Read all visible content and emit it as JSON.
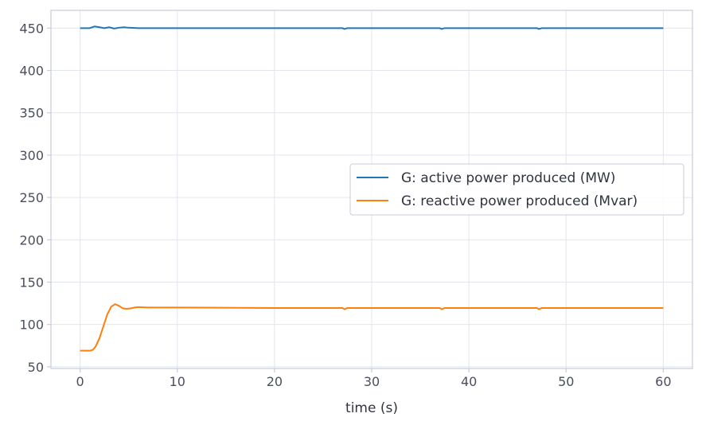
{
  "chart_data": {
    "type": "line",
    "title": "",
    "xlabel": "time (s)",
    "ylabel": "",
    "xlim": [
      -3,
      63
    ],
    "ylim": [
      48,
      471
    ],
    "xticks": [
      0,
      10,
      20,
      30,
      40,
      50,
      60
    ],
    "yticks": [
      50,
      100,
      150,
      200,
      250,
      300,
      350,
      400,
      450
    ],
    "grid": true,
    "legend_position": "center-right",
    "series": [
      {
        "name": "G: active power produced (MW)",
        "color": "#1f77b4",
        "x": [
          0,
          1.0,
          1.5,
          2.0,
          2.5,
          3.0,
          3.5,
          4.0,
          4.5,
          5.0,
          6.0,
          8.0,
          10,
          20,
          27.0,
          27.2,
          27.5,
          30,
          37.0,
          37.2,
          37.5,
          40,
          47.0,
          47.2,
          47.5,
          50,
          60
        ],
        "y": [
          450,
          450,
          452,
          451,
          450,
          451,
          449.5,
          450.5,
          451,
          450.5,
          450,
          450,
          450,
          450,
          450,
          449,
          450,
          450,
          450,
          449,
          450,
          450,
          450,
          449,
          450,
          450,
          450
        ]
      },
      {
        "name": "G: reactive power produced (Mvar)",
        "color": "#ff7f0e",
        "x": [
          0,
          0.5,
          1.0,
          1.3,
          1.6,
          2.0,
          2.4,
          2.8,
          3.2,
          3.6,
          4.0,
          4.4,
          4.8,
          5.2,
          5.6,
          6.0,
          7.0,
          8.0,
          10,
          20,
          27.0,
          27.2,
          27.5,
          30,
          37.0,
          37.2,
          37.5,
          40,
          47.0,
          47.2,
          47.5,
          50,
          60
        ],
        "y": [
          69,
          69,
          69,
          70,
          74,
          84,
          98,
          112,
          121,
          124,
          122,
          119,
          118.5,
          119,
          120,
          120.5,
          120,
          120,
          120,
          119.5,
          119.5,
          118,
          119.5,
          119.5,
          119.5,
          118,
          119.5,
          119.5,
          119.5,
          118,
          119.5,
          119.5,
          119.5
        ]
      }
    ]
  }
}
